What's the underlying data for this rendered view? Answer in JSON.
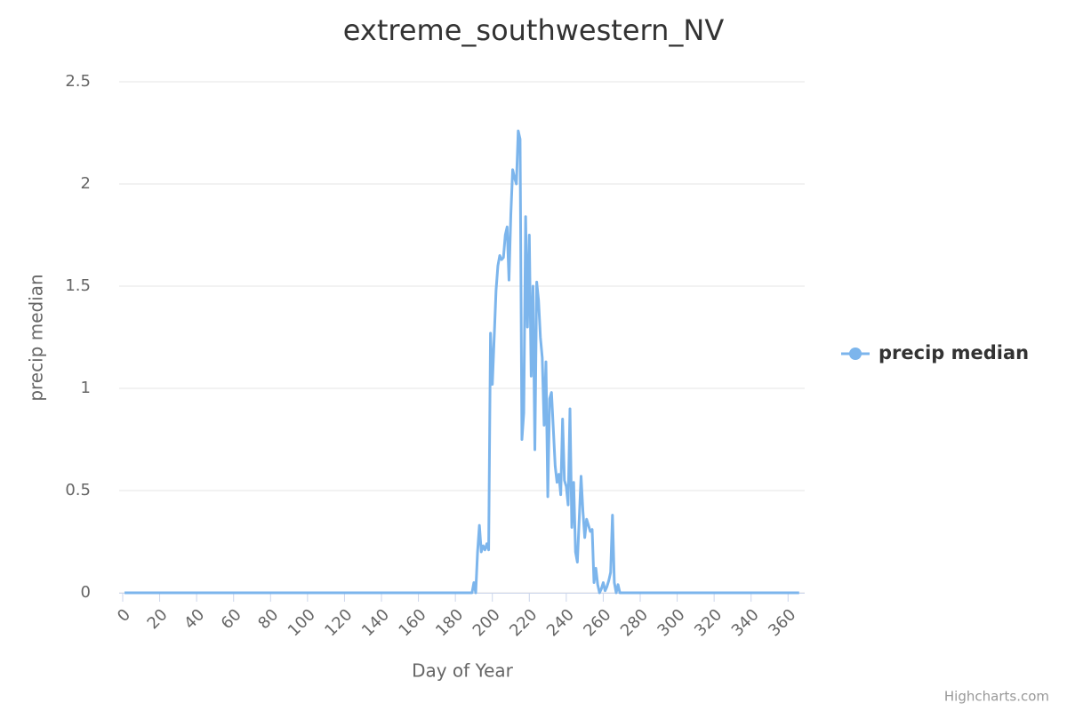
{
  "chart_data": {
    "type": "line",
    "title": "extreme_southwestern_NV",
    "x_label": "Day of Year",
    "y_label": "precip median",
    "x": [
      1,
      188,
      189,
      190,
      191,
      192,
      193,
      194,
      195,
      196,
      197,
      198,
      199,
      200,
      201,
      202,
      203,
      204,
      205,
      206,
      207,
      208,
      209,
      210,
      211,
      212,
      213,
      214,
      215,
      216,
      217,
      218,
      219,
      220,
      221,
      222,
      223,
      224,
      225,
      226,
      227,
      228,
      229,
      230,
      231,
      232,
      233,
      234,
      235,
      236,
      237,
      238,
      239,
      240,
      241,
      242,
      243,
      244,
      245,
      246,
      247,
      248,
      249,
      250,
      251,
      252,
      253,
      254,
      255,
      256,
      257,
      258,
      259,
      260,
      261,
      262,
      263,
      264,
      265,
      266,
      267,
      268,
      269,
      270,
      366
    ],
    "series": [
      {
        "name": "precip median",
        "color": "#7cb5ec",
        "values": [
          0,
          0,
          0,
          0.05,
          0,
          0.2,
          0.33,
          0.2,
          0.23,
          0.21,
          0.24,
          0.21,
          1.27,
          1.02,
          1.25,
          1.48,
          1.6,
          1.65,
          1.63,
          1.64,
          1.75,
          1.79,
          1.53,
          1.85,
          2.07,
          2.03,
          2.0,
          2.26,
          2.22,
          0.75,
          0.88,
          1.84,
          1.3,
          1.75,
          1.06,
          1.5,
          0.7,
          1.52,
          1.43,
          1.25,
          1.15,
          0.82,
          1.13,
          0.47,
          0.95,
          0.98,
          0.8,
          0.62,
          0.54,
          0.58,
          0.48,
          0.85,
          0.55,
          0.52,
          0.43,
          0.9,
          0.32,
          0.54,
          0.2,
          0.15,
          0.36,
          0.57,
          0.4,
          0.27,
          0.36,
          0.33,
          0.3,
          0.31,
          0.05,
          0.12,
          0.04,
          0,
          0.02,
          0.05,
          0.01,
          0.03,
          0.06,
          0.1,
          0.38,
          0.05,
          0,
          0.04,
          0,
          0,
          0
        ]
      }
    ],
    "xlim": [
      0,
      369
    ],
    "xticks": [
      0,
      20,
      40,
      60,
      80,
      100,
      120,
      140,
      160,
      180,
      200,
      220,
      240,
      260,
      280,
      300,
      320,
      340,
      360
    ],
    "ylim": [
      0,
      2.5
    ],
    "yticks": [
      0,
      0.5,
      1,
      1.5,
      2,
      2.5
    ],
    "grid": true,
    "legend": "right",
    "credits": "Highcharts.com"
  }
}
